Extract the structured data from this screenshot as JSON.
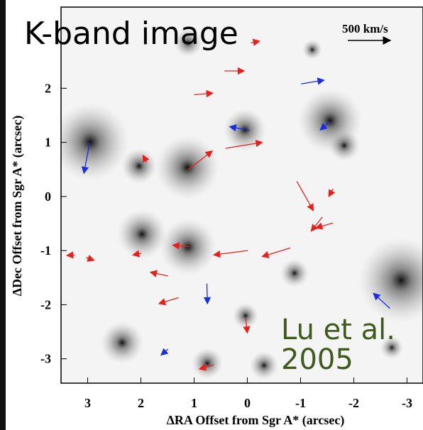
{
  "chart_data": {
    "type": "vector",
    "title": "K-band image",
    "annotation": "Lu et al. 2005",
    "scale_label": "500 km/s",
    "xlabel": "ΔRA Offset from Sgr A* (arcsec)",
    "ylabel": "ΔDec Offset from Sgr A* (arcsec)",
    "xlim": [
      3.5,
      -3.3
    ],
    "ylim": [
      -3.45,
      3.5
    ],
    "xticks": [
      3,
      2,
      1,
      0,
      -1,
      -2,
      -3
    ],
    "yticks": [
      -3,
      -2,
      -1,
      0,
      1,
      2
    ],
    "series": [
      {
        "color": "#e8201c",
        "x": [
          0.43,
          1.0,
          0.41,
          1.11,
          1.89,
          -0.93,
          -1.61,
          -1.41,
          -1.61,
          -0.01,
          -0.81,
          1.09,
          1.99,
          3.03,
          3.24,
          1.49,
          1.29,
          0.03,
          0.63,
          -0.07
        ],
        "y": [
          2.32,
          1.88,
          0.89,
          0.5,
          0.63,
          0.28,
          0.14,
          -0.38,
          -0.49,
          -1.0,
          -0.95,
          -0.93,
          -1.05,
          -1.13,
          -1.08,
          -1.47,
          -1.87,
          -2.26,
          -3.11,
          2.84
        ],
        "u": [
          -0.37,
          -0.35,
          -0.69,
          -0.45,
          0.07,
          -0.31,
          0.08,
          0.21,
          0.32,
          0.64,
          0.53,
          0.31,
          0.16,
          -0.15,
          0.15,
          0.33,
          0.37,
          -0.03,
          0.27,
          -0.16
        ],
        "v": [
          0,
          0.03,
          0.11,
          0.34,
          0.13,
          -0.54,
          -0.14,
          -0.26,
          -0.09,
          -0.08,
          -0.16,
          0.03,
          -0.03,
          -0.05,
          -0.01,
          0.07,
          -0.11,
          -0.26,
          -0.08,
          0.03
        ]
      },
      {
        "color": "#1a2ee0",
        "x": [
          2.96,
          -0.04,
          -1.01,
          -1.56,
          0.76,
          -2.68,
          1.49
        ],
        "y": [
          1.0,
          1.22,
          2.08,
          1.39,
          -1.61,
          -2.07,
          -2.82
        ],
        "u": [
          0.11,
          0.37,
          -0.43,
          0.19,
          -0.01,
          0.31,
          0.13
        ],
        "v": [
          -0.57,
          0.07,
          0.07,
          -0.16,
          -0.37,
          0.28,
          -0.11
        ]
      }
    ]
  }
}
